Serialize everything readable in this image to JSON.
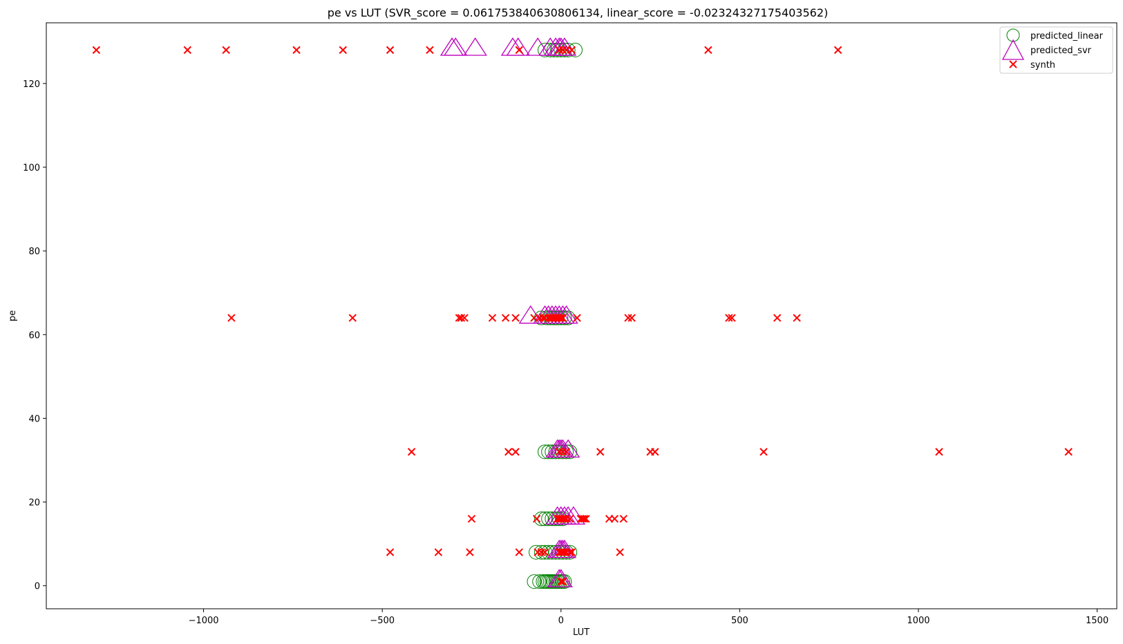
{
  "chart_data": {
    "type": "scatter",
    "title": "pe vs LUT (SVR_score = 0.061753840630806134, linear_score = -0.02324327175403562)",
    "xlabel": "LUT",
    "ylabel": "pe",
    "xlim": [
      -1440,
      1555
    ],
    "ylim": [
      -5.5,
      134.5
    ],
    "xticks": [
      -1000,
      -500,
      0,
      500,
      1000,
      1500
    ],
    "xtick_labels": [
      "−1000",
      "−500",
      "0",
      "500",
      "1000",
      "1500"
    ],
    "yticks": [
      0,
      20,
      40,
      60,
      80,
      100,
      120
    ],
    "ytick_labels": [
      "0",
      "20",
      "40",
      "60",
      "80",
      "100",
      "120"
    ],
    "grid": false,
    "legend_position": "top-right",
    "series": [
      {
        "name": "predicted_linear",
        "marker": "circle",
        "color": "#008000",
        "points": [
          [
            -75,
            1
          ],
          [
            -60,
            1
          ],
          [
            -50,
            1
          ],
          [
            -45,
            1
          ],
          [
            -40,
            1
          ],
          [
            -35,
            1
          ],
          [
            -30,
            1
          ],
          [
            -25,
            1
          ],
          [
            -20,
            1
          ],
          [
            -15,
            1
          ],
          [
            -10,
            1
          ],
          [
            -5,
            1
          ],
          [
            0,
            1
          ],
          [
            5,
            1
          ],
          [
            10,
            1
          ],
          [
            -70,
            8
          ],
          [
            -55,
            8
          ],
          [
            -45,
            8
          ],
          [
            -35,
            8
          ],
          [
            -25,
            8
          ],
          [
            -15,
            8
          ],
          [
            -5,
            8
          ],
          [
            5,
            8
          ],
          [
            15,
            8
          ],
          [
            25,
            8
          ],
          [
            -55,
            16
          ],
          [
            -45,
            16
          ],
          [
            -35,
            16
          ],
          [
            -25,
            16
          ],
          [
            -15,
            16
          ],
          [
            -5,
            16
          ],
          [
            5,
            16
          ],
          [
            -45,
            32
          ],
          [
            -35,
            32
          ],
          [
            -25,
            32
          ],
          [
            -15,
            32
          ],
          [
            -5,
            32
          ],
          [
            5,
            32
          ],
          [
            15,
            32
          ],
          [
            25,
            32
          ],
          [
            -55,
            64
          ],
          [
            -40,
            64
          ],
          [
            -30,
            64
          ],
          [
            -20,
            64
          ],
          [
            -10,
            64
          ],
          [
            0,
            64
          ],
          [
            10,
            64
          ],
          [
            20,
            64
          ],
          [
            -45,
            128
          ],
          [
            -30,
            128
          ],
          [
            -20,
            128
          ],
          [
            -10,
            128
          ],
          [
            0,
            128
          ],
          [
            10,
            128
          ],
          [
            20,
            128
          ],
          [
            40,
            128
          ]
        ]
      },
      {
        "name": "predicted_svr",
        "marker": "triangle",
        "color": "#bf00bf",
        "points": [
          [
            -5,
            1
          ],
          [
            0,
            1
          ],
          [
            -5,
            8
          ],
          [
            0,
            8
          ],
          [
            5,
            8
          ],
          [
            10,
            8
          ],
          [
            -10,
            16
          ],
          [
            0,
            16
          ],
          [
            10,
            16
          ],
          [
            20,
            16
          ],
          [
            35,
            16
          ],
          [
            -10,
            32
          ],
          [
            -5,
            32
          ],
          [
            0,
            32
          ],
          [
            5,
            32
          ],
          [
            20,
            32
          ],
          [
            -85,
            64
          ],
          [
            -45,
            64
          ],
          [
            -35,
            64
          ],
          [
            -25,
            64
          ],
          [
            -15,
            64
          ],
          [
            -5,
            64
          ],
          [
            5,
            64
          ],
          [
            15,
            64
          ],
          [
            -305,
            128
          ],
          [
            -295,
            128
          ],
          [
            -240,
            128
          ],
          [
            -135,
            128
          ],
          [
            -120,
            128
          ],
          [
            -65,
            128
          ],
          [
            -30,
            128
          ],
          [
            -15,
            128
          ],
          [
            -5,
            128
          ],
          [
            0,
            128
          ],
          [
            10,
            128
          ]
        ]
      },
      {
        "name": "synth",
        "marker": "x",
        "color": "#ff0000",
        "points": [
          [
            0,
            1
          ],
          [
            5,
            1
          ],
          [
            -478,
            8
          ],
          [
            -343,
            8
          ],
          [
            -255,
            8
          ],
          [
            -117,
            8
          ],
          [
            -65,
            8
          ],
          [
            -55,
            8
          ],
          [
            -45,
            8
          ],
          [
            -5,
            8
          ],
          [
            0,
            8
          ],
          [
            5,
            8
          ],
          [
            10,
            8
          ],
          [
            15,
            8
          ],
          [
            25,
            8
          ],
          [
            30,
            8
          ],
          [
            165,
            8
          ],
          [
            -250,
            16
          ],
          [
            -68,
            16
          ],
          [
            -10,
            16
          ],
          [
            -5,
            16
          ],
          [
            0,
            16
          ],
          [
            5,
            16
          ],
          [
            10,
            16
          ],
          [
            15,
            16
          ],
          [
            25,
            16
          ],
          [
            55,
            16
          ],
          [
            60,
            16
          ],
          [
            65,
            16
          ],
          [
            70,
            16
          ],
          [
            135,
            16
          ],
          [
            150,
            16
          ],
          [
            175,
            16
          ],
          [
            -418,
            32
          ],
          [
            -147,
            32
          ],
          [
            -127,
            32
          ],
          [
            -5,
            32
          ],
          [
            5,
            32
          ],
          [
            15,
            32
          ],
          [
            110,
            32
          ],
          [
            250,
            32
          ],
          [
            263,
            32
          ],
          [
            567,
            32
          ],
          [
            1058,
            32
          ],
          [
            1420,
            32
          ],
          [
            -922,
            64
          ],
          [
            -583,
            64
          ],
          [
            -285,
            64
          ],
          [
            -279,
            64
          ],
          [
            -270,
            64
          ],
          [
            -192,
            64
          ],
          [
            -155,
            64
          ],
          [
            -127,
            64
          ],
          [
            -75,
            64
          ],
          [
            -60,
            64
          ],
          [
            -50,
            64
          ],
          [
            -45,
            64
          ],
          [
            -35,
            64
          ],
          [
            -30,
            64
          ],
          [
            -25,
            64
          ],
          [
            -20,
            64
          ],
          [
            -15,
            64
          ],
          [
            -10,
            64
          ],
          [
            -5,
            64
          ],
          [
            0,
            64
          ],
          [
            5,
            64
          ],
          [
            45,
            64
          ],
          [
            188,
            64
          ],
          [
            198,
            64
          ],
          [
            470,
            64
          ],
          [
            478,
            64
          ],
          [
            605,
            64
          ],
          [
            660,
            64
          ],
          [
            -1300,
            128
          ],
          [
            -1045,
            128
          ],
          [
            -937,
            128
          ],
          [
            -740,
            128
          ],
          [
            -610,
            128
          ],
          [
            -478,
            128
          ],
          [
            -367,
            128
          ],
          [
            -117,
            128
          ],
          [
            -5,
            128
          ],
          [
            5,
            128
          ],
          [
            15,
            128
          ],
          [
            30,
            128
          ],
          [
            412,
            128
          ],
          [
            775,
            128
          ]
        ]
      }
    ]
  }
}
